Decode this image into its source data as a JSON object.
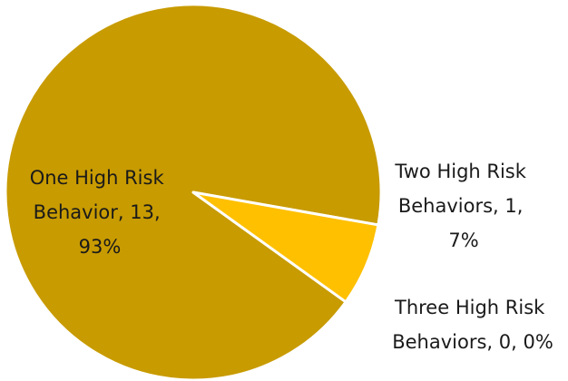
{
  "chart_data": {
    "type": "pie",
    "slices": [
      {
        "category": "One High Risk Behavior",
        "value": 13,
        "percent": "93%",
        "color": "#C89B00",
        "label_lines": [
          "One High Risk",
          "Behavior, 13,",
          "93%"
        ]
      },
      {
        "category": "Two High Risk Behaviors",
        "value": 1,
        "percent": "7%",
        "color": "#FFC000",
        "label_lines": [
          "Two High Risk",
          "Behaviors, 1,",
          "7%"
        ]
      },
      {
        "category": "Three High Risk Behaviors",
        "value": 0,
        "percent": "0%",
        "color": "#E6B800",
        "label_lines": [
          "Three High Risk",
          "Behaviors, 0, 0%"
        ]
      }
    ],
    "legend": "none",
    "start_angle_deg": 10
  }
}
